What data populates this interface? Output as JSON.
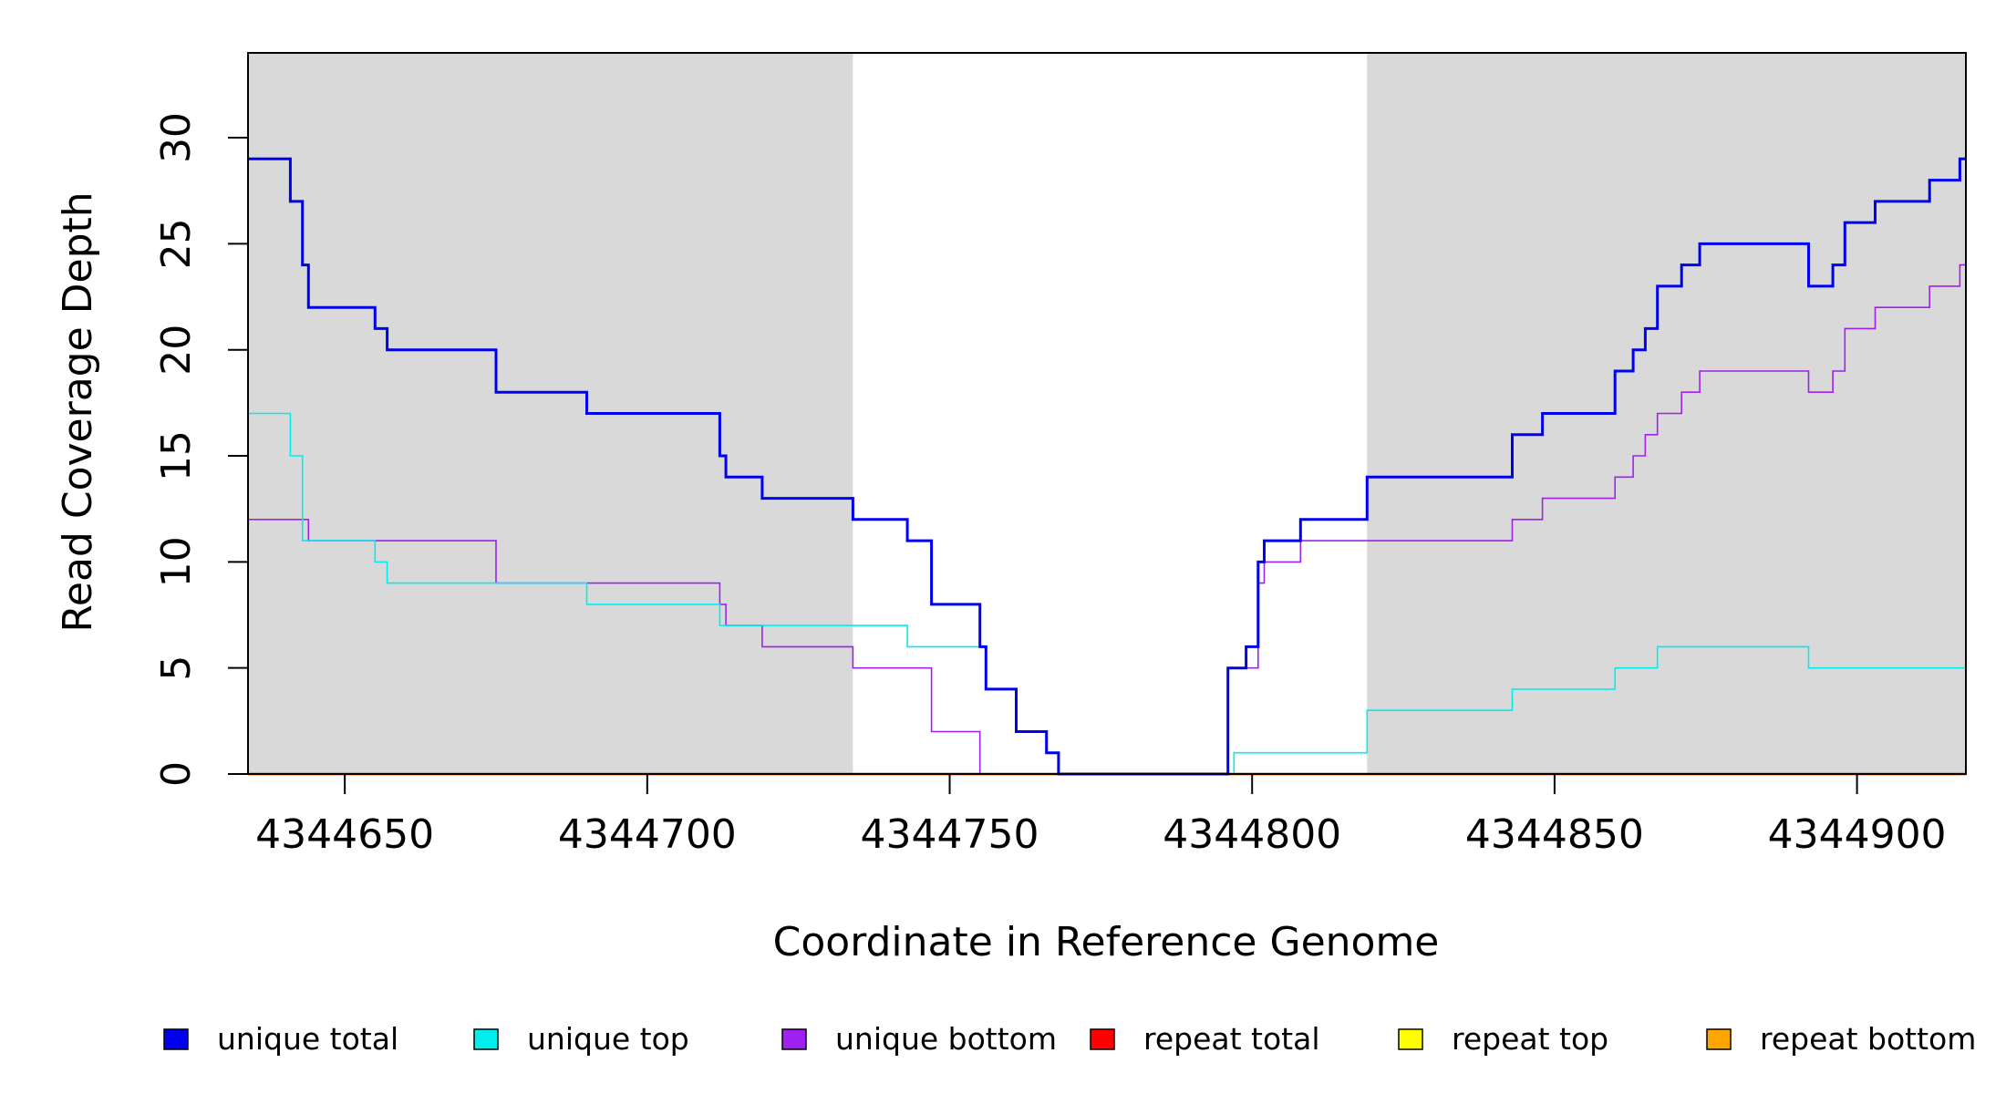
{
  "chart_data": {
    "type": "line",
    "title": "",
    "xlabel": "Coordinate in Reference Genome",
    "ylabel": "Read Coverage Depth",
    "xlim": [
      4344634,
      4344918
    ],
    "ylim": [
      0,
      34
    ],
    "x_ticks": [
      4344650,
      4344700,
      4344750,
      4344800,
      4344850,
      4344900
    ],
    "y_ticks": [
      0,
      5,
      10,
      15,
      20,
      25,
      30
    ],
    "shaded_regions": [
      [
        4344634,
        4344734
      ],
      [
        4344819,
        4344918
      ]
    ],
    "shade_color": "#d9d9d9",
    "grid": false,
    "legend_position": "bottom",
    "series": [
      {
        "name": "unique total",
        "color": "#0000ee",
        "steps": [
          [
            4344634,
            29
          ],
          [
            4344641,
            27
          ],
          [
            4344643,
            24
          ],
          [
            4344644,
            22
          ],
          [
            4344655,
            21
          ],
          [
            4344657,
            20
          ],
          [
            4344675,
            18
          ],
          [
            4344690,
            17
          ],
          [
            4344712,
            15
          ],
          [
            4344713,
            14
          ],
          [
            4344719,
            13
          ],
          [
            4344734,
            12
          ],
          [
            4344743,
            11
          ],
          [
            4344747,
            8
          ],
          [
            4344755,
            6
          ],
          [
            4344756,
            4
          ],
          [
            4344761,
            2
          ],
          [
            4344766,
            1
          ],
          [
            4344768,
            0
          ],
          [
            4344796,
            5
          ],
          [
            4344799,
            6
          ],
          [
            4344801,
            10
          ],
          [
            4344802,
            11
          ],
          [
            4344808,
            12
          ],
          [
            4344819,
            14
          ],
          [
            4344843,
            16
          ],
          [
            4344848,
            17
          ],
          [
            4344860,
            19
          ],
          [
            4344863,
            20
          ],
          [
            4344865,
            21
          ],
          [
            4344867,
            23
          ],
          [
            4344871,
            24
          ],
          [
            4344874,
            25
          ],
          [
            4344892,
            23
          ],
          [
            4344896,
            24
          ],
          [
            4344898,
            26
          ],
          [
            4344903,
            27
          ],
          [
            4344912,
            28
          ],
          [
            4344917,
            29
          ],
          [
            4344918,
            29
          ]
        ]
      },
      {
        "name": "unique top",
        "color": "#00eeee",
        "steps": [
          [
            4344634,
            17
          ],
          [
            4344641,
            15
          ],
          [
            4344643,
            11
          ],
          [
            4344655,
            10
          ],
          [
            4344657,
            9
          ],
          [
            4344675,
            9
          ],
          [
            4344690,
            8
          ],
          [
            4344712,
            7
          ],
          [
            4344734,
            7
          ],
          [
            4344743,
            6
          ],
          [
            4344755,
            6
          ],
          [
            4344756,
            4
          ],
          [
            4344761,
            2
          ],
          [
            4344766,
            1
          ],
          [
            4344768,
            0
          ],
          [
            4344797,
            1
          ],
          [
            4344819,
            3
          ],
          [
            4344843,
            4
          ],
          [
            4344860,
            5
          ],
          [
            4344867,
            6
          ],
          [
            4344892,
            5
          ],
          [
            4344918,
            5
          ]
        ]
      },
      {
        "name": "unique bottom",
        "color": "#a020f0",
        "steps": [
          [
            4344634,
            12
          ],
          [
            4344644,
            11
          ],
          [
            4344675,
            9
          ],
          [
            4344712,
            8
          ],
          [
            4344713,
            7
          ],
          [
            4344719,
            6
          ],
          [
            4344734,
            5
          ],
          [
            4344747,
            2
          ],
          [
            4344755,
            0
          ],
          [
            4344796,
            5
          ],
          [
            4344801,
            9
          ],
          [
            4344802,
            10
          ],
          [
            4344808,
            11
          ],
          [
            4344843,
            12
          ],
          [
            4344848,
            13
          ],
          [
            4344860,
            14
          ],
          [
            4344863,
            15
          ],
          [
            4344865,
            16
          ],
          [
            4344867,
            17
          ],
          [
            4344871,
            18
          ],
          [
            4344874,
            19
          ],
          [
            4344892,
            18
          ],
          [
            4344896,
            19
          ],
          [
            4344898,
            21
          ],
          [
            4344903,
            22
          ],
          [
            4344912,
            23
          ],
          [
            4344917,
            24
          ],
          [
            4344918,
            24
          ]
        ]
      },
      {
        "name": "repeat total",
        "color": "#ff0000",
        "steps": [
          [
            4344634,
            0
          ],
          [
            4344918,
            0
          ]
        ]
      },
      {
        "name": "repeat top",
        "color": "#ffff00",
        "steps": [
          [
            4344634,
            0
          ],
          [
            4344918,
            0
          ]
        ]
      },
      {
        "name": "repeat bottom",
        "color": "#ffa500",
        "steps": [
          [
            4344634,
            0
          ],
          [
            4344918,
            0
          ]
        ]
      }
    ]
  }
}
